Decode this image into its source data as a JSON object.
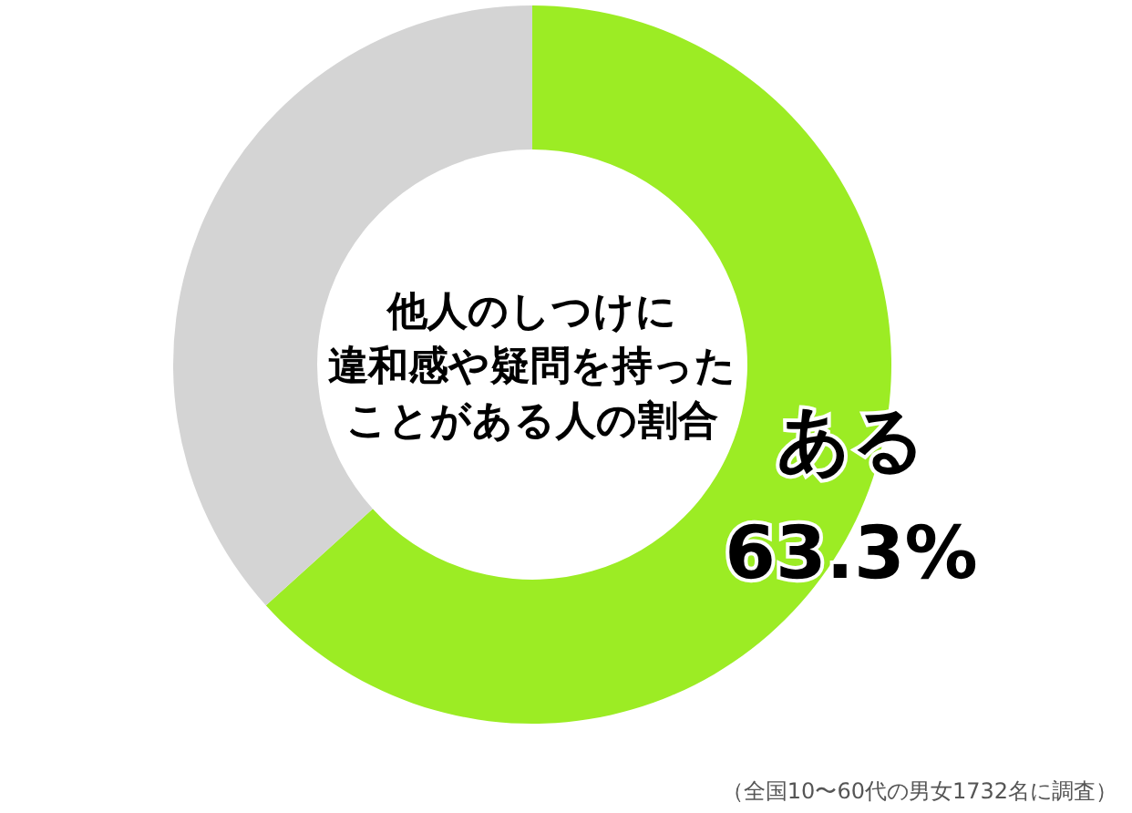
{
  "chart_data": {
    "type": "donut",
    "title": "他人のしつけに違和感や疑問を持ったことがある人の割合",
    "categories": [
      "ある",
      null
    ],
    "values": [
      63.3,
      36.7
    ],
    "value_labels": [
      "63.3%",
      null
    ],
    "colors": [
      "#9cec24",
      "#d4d4d4"
    ],
    "annotations": [
      "（全国10〜60代の男女1732名に調査）"
    ]
  }
}
